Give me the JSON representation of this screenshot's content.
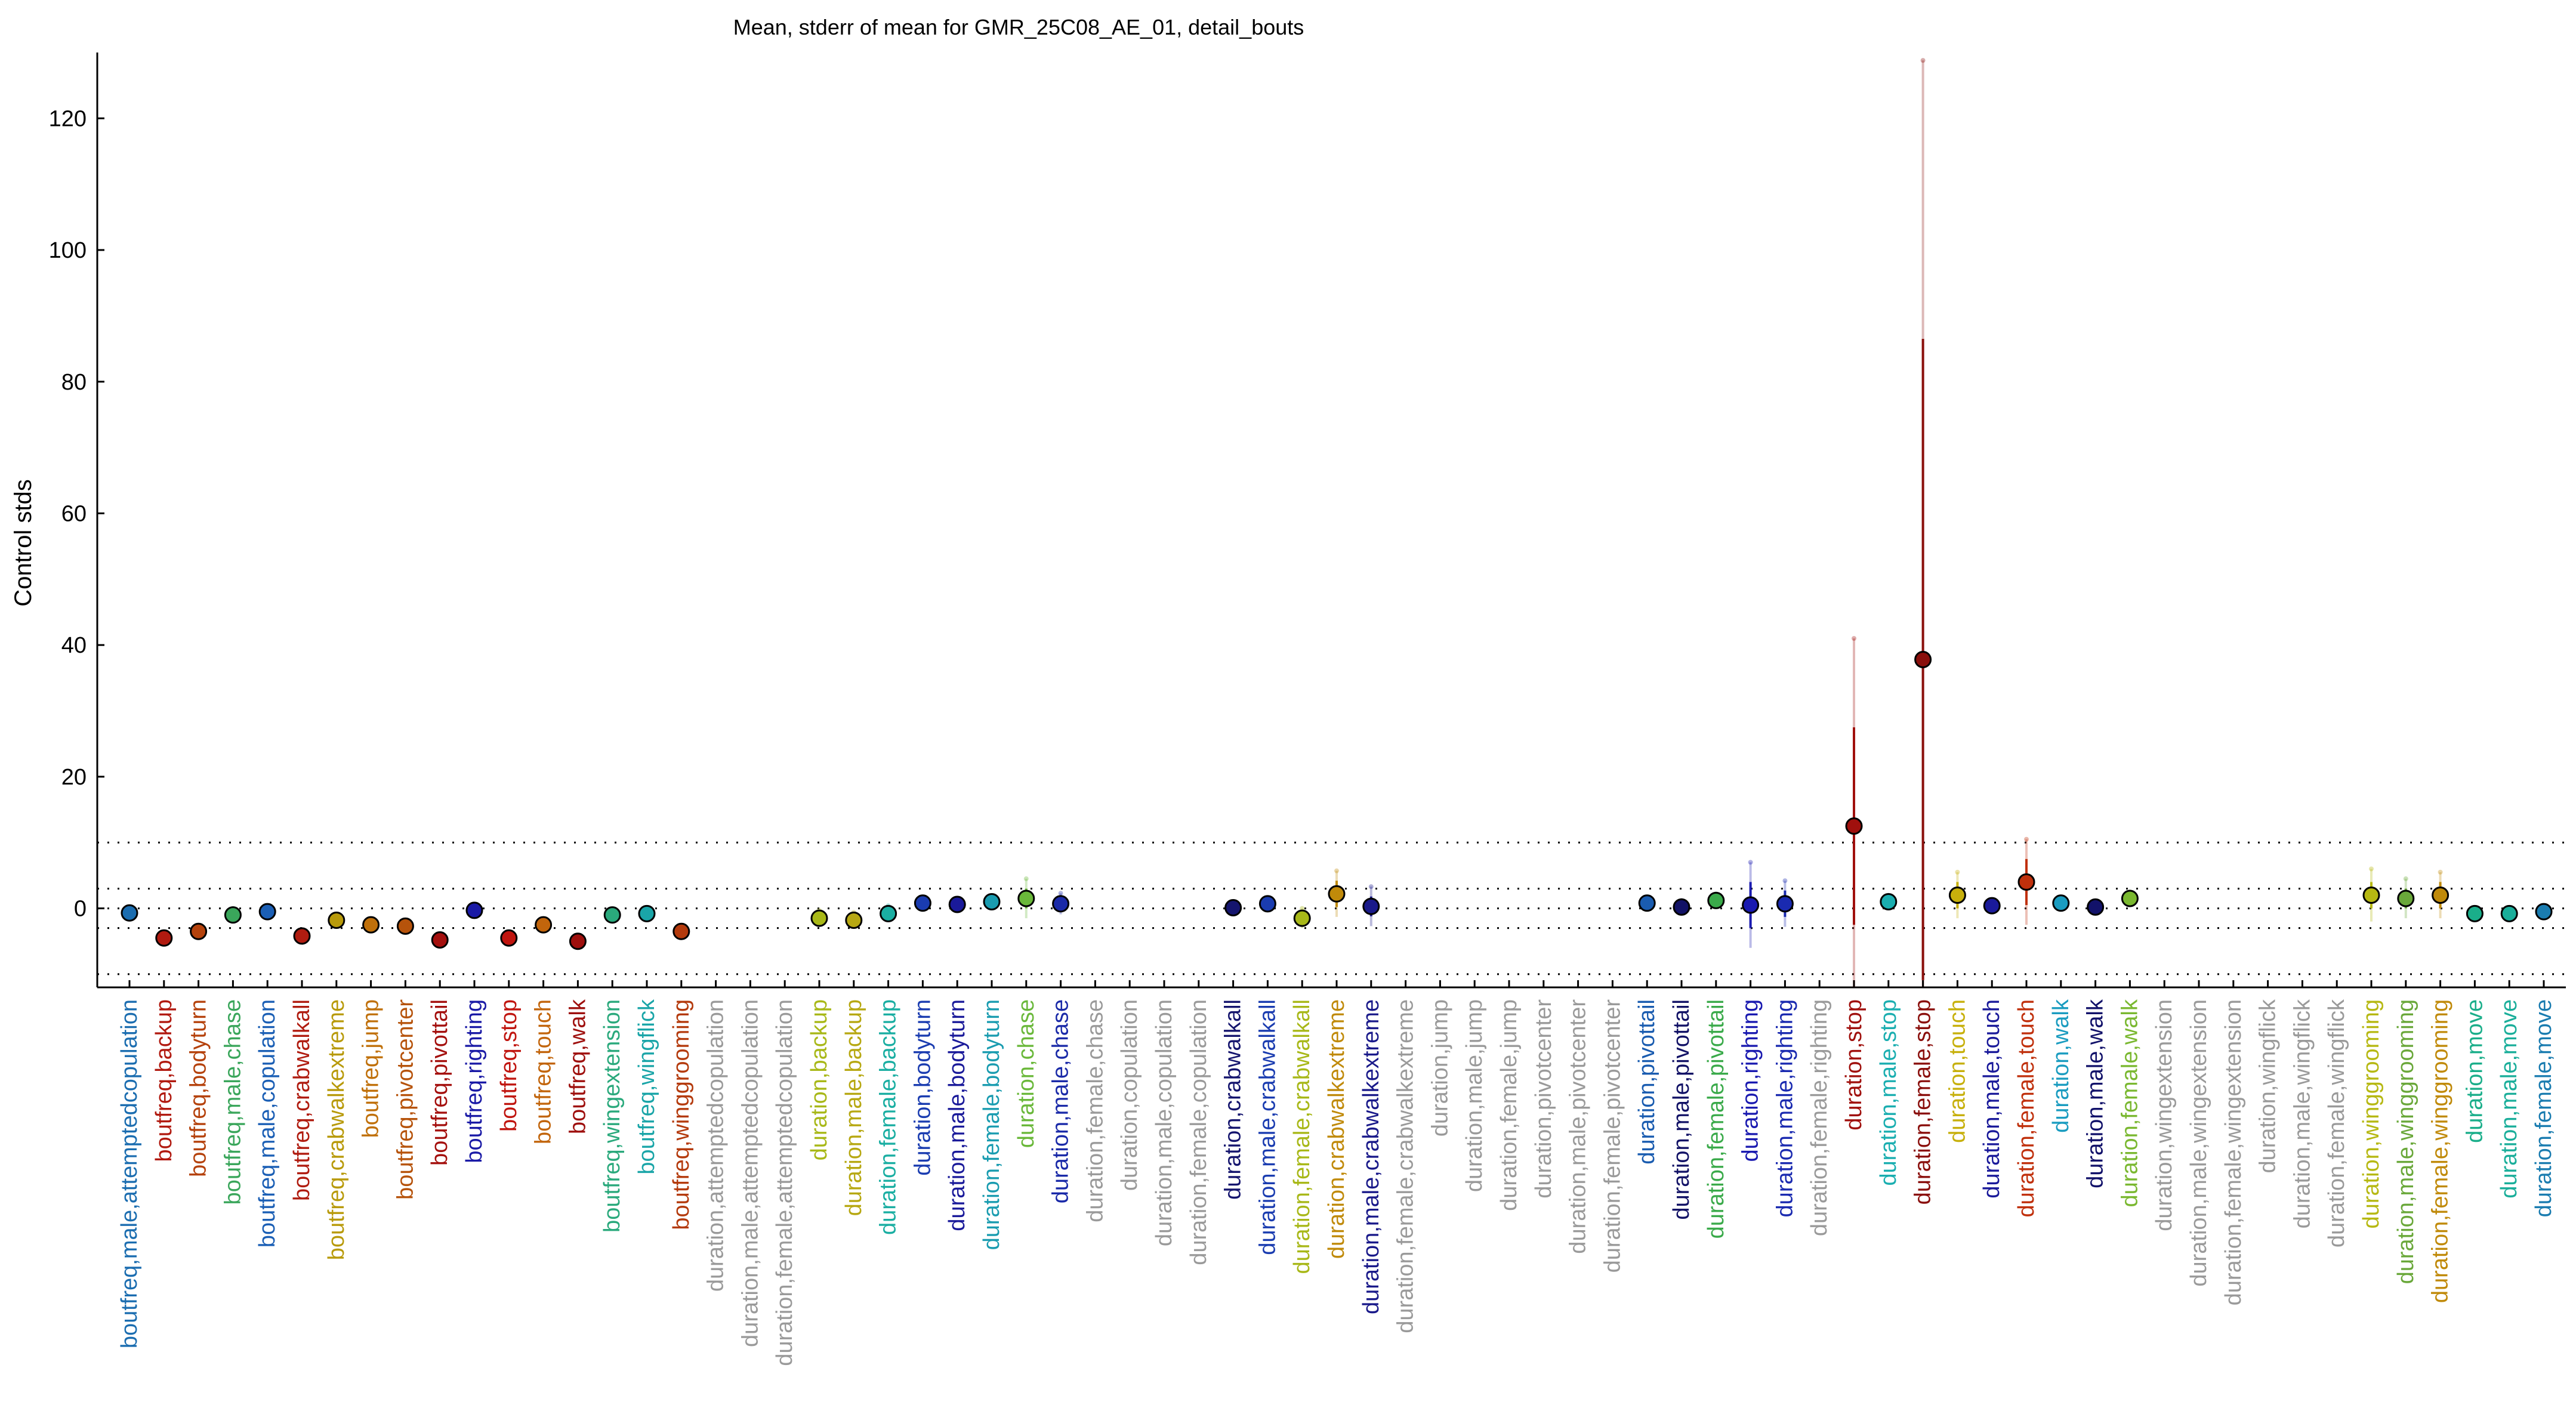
{
  "chart_data": {
    "type": "scatter",
    "title": "Mean, stderr of mean for GMR_25C08_AE_01, detail_bouts",
    "ylabel": "Control stds",
    "ylim": [
      -12,
      130
    ],
    "yticks": [
      0,
      20,
      40,
      60,
      80,
      100,
      120
    ],
    "reference_lines": [
      -10,
      -3,
      0,
      3,
      10
    ],
    "grid": false,
    "points": [
      {
        "label": "boutfreq,male,attemptedcopulation",
        "color": "#1b6db0",
        "y": -0.7,
        "se": 0.3,
        "se2": 0.5
      },
      {
        "label": "boutfreq,backup",
        "color": "#b11a10",
        "y": -4.5,
        "se": 0.4,
        "se2": 0.7
      },
      {
        "label": "boutfreq,bodyturn",
        "color": "#b5420c",
        "y": -3.5,
        "se": 0.4,
        "se2": 0.7
      },
      {
        "label": "boutfreq,male,chase",
        "color": "#3aa65b",
        "y": -1.0,
        "se": 0.5,
        "se2": 1.0
      },
      {
        "label": "boutfreq,male,copulation",
        "color": "#1b5fb5",
        "y": -0.5,
        "se": 0.3,
        "se2": 0.5
      },
      {
        "label": "boutfreq,crabwalkall",
        "color": "#b01c10",
        "y": -4.2,
        "se": 0.4,
        "se2": 0.7
      },
      {
        "label": "boutfreq,crabwalkextreme",
        "color": "#b89a0a",
        "y": -1.8,
        "se": 0.5,
        "se2": 0.9
      },
      {
        "label": "boutfreq,jump",
        "color": "#c0700a",
        "y": -2.5,
        "se": 0.4,
        "se2": 0.8
      },
      {
        "label": "boutfreq,pivotcenter",
        "color": "#b6530b",
        "y": -2.7,
        "se": 0.4,
        "se2": 0.8
      },
      {
        "label": "boutfreq,pivottail",
        "color": "#a4100e",
        "y": -4.8,
        "se": 0.4,
        "se2": 0.7
      },
      {
        "label": "boutfreq,righting",
        "color": "#1a1aa6",
        "y": -0.3,
        "se": 0.4,
        "se2": 0.7
      },
      {
        "label": "boutfreq,stop",
        "color": "#c0150f",
        "y": -4.5,
        "se": 0.4,
        "se2": 0.7
      },
      {
        "label": "boutfreq,touch",
        "color": "#c2650c",
        "y": -2.5,
        "se": 0.5,
        "se2": 0.8
      },
      {
        "label": "boutfreq,walk",
        "color": "#9e0f0d",
        "y": -5.0,
        "se": 0.4,
        "se2": 0.7
      },
      {
        "label": "boutfreq,wingextension",
        "color": "#2aa97c",
        "y": -1.0,
        "se": 0.5,
        "se2": 0.9
      },
      {
        "label": "boutfreq,wingflick",
        "color": "#1aa5a8",
        "y": -0.8,
        "se": 0.4,
        "se2": 0.7
      },
      {
        "label": "boutfreq,winggrooming",
        "color": "#b43a0c",
        "y": -3.5,
        "se": 0.4,
        "se2": 0.7
      },
      {
        "label": "duration,attemptedcopulation",
        "color": "#9a9a9a",
        "y": null
      },
      {
        "label": "duration,male,attemptedcopulation",
        "color": "#9a9a9a",
        "y": null
      },
      {
        "label": "duration,female,attemptedcopulation",
        "color": "#9a9a9a",
        "y": null
      },
      {
        "label": "duration,backup",
        "color": "#a8b818",
        "y": -1.5,
        "se": 0.6,
        "se2": 1.2
      },
      {
        "label": "duration,male,backup",
        "color": "#b7a812",
        "y": -1.8,
        "se": 0.6,
        "se2": 1.2
      },
      {
        "label": "duration,female,backup",
        "color": "#1aaea2",
        "y": -0.8,
        "se": 0.6,
        "se2": 1.2
      },
      {
        "label": "duration,bodyturn",
        "color": "#1a3cb0",
        "y": 0.8,
        "se": 0.3,
        "se2": 0.6
      },
      {
        "label": "duration,male,bodyturn",
        "color": "#1a1a9a",
        "y": 0.6,
        "se": 0.3,
        "se2": 0.6
      },
      {
        "label": "duration,female,bodyturn",
        "color": "#1a9cb0",
        "y": 1.0,
        "se": 0.5,
        "se2": 0.9
      },
      {
        "label": "duration,chase",
        "color": "#6ab83a",
        "y": 1.5,
        "se": 1.5,
        "se2": 3.0
      },
      {
        "label": "duration,male,chase",
        "color": "#1a2aa8",
        "y": 0.7,
        "se": 0.8,
        "se2": 1.6
      },
      {
        "label": "duration,female,chase",
        "color": "#9a9a9a",
        "y": null
      },
      {
        "label": "duration,copulation",
        "color": "#9a9a9a",
        "y": null
      },
      {
        "label": "duration,male,copulation",
        "color": "#9a9a9a",
        "y": null
      },
      {
        "label": "duration,female,copulation",
        "color": "#9a9a9a",
        "y": null
      },
      {
        "label": "duration,crabwalkall",
        "color": "#15156e",
        "y": 0.1,
        "se": 0.3,
        "se2": 0.6
      },
      {
        "label": "duration,male,crabwalkall",
        "color": "#1a3cb0",
        "y": 0.7,
        "se": 0.3,
        "se2": 0.6
      },
      {
        "label": "duration,female,crabwalkall",
        "color": "#a8b818",
        "y": -1.5,
        "se": 0.8,
        "se2": 1.5
      },
      {
        "label": "duration,crabwalkextreme",
        "color": "#c08a0a",
        "y": 2.2,
        "se": 2.0,
        "se2": 3.5
      },
      {
        "label": "duration,male,crabwalkextreme",
        "color": "#1a1a8a",
        "y": 0.3,
        "se": 1.5,
        "se2": 3.0
      },
      {
        "label": "duration,female,crabwalkextreme",
        "color": "#9a9a9a",
        "y": null
      },
      {
        "label": "duration,jump",
        "color": "#9a9a9a",
        "y": null
      },
      {
        "label": "duration,male,jump",
        "color": "#9a9a9a",
        "y": null
      },
      {
        "label": "duration,female,jump",
        "color": "#9a9a9a",
        "y": null
      },
      {
        "label": "duration,pivotcenter",
        "color": "#9a9a9a",
        "y": null
      },
      {
        "label": "duration,male,pivotcenter",
        "color": "#9a9a9a",
        "y": null
      },
      {
        "label": "duration,female,pivotcenter",
        "color": "#9a9a9a",
        "y": null
      },
      {
        "label": "duration,pivottail",
        "color": "#1a5cb0",
        "y": 0.8,
        "se": 0.3,
        "se2": 0.6
      },
      {
        "label": "duration,male,pivottail",
        "color": "#121266",
        "y": 0.2,
        "se": 0.5,
        "se2": 1.0
      },
      {
        "label": "duration,female,pivottail",
        "color": "#3aaa4a",
        "y": 1.2,
        "se": 0.5,
        "se2": 1.0
      },
      {
        "label": "duration,righting",
        "color": "#1a1ab0",
        "y": 0.5,
        "se": 3.5,
        "se2": 6.5
      },
      {
        "label": "duration,male,righting",
        "color": "#1a2ab0",
        "y": 0.7,
        "se": 2.0,
        "se2": 3.5
      },
      {
        "label": "duration,female,righting",
        "color": "#9a9a9a",
        "y": null
      },
      {
        "label": "duration,stop",
        "color": "#a0100d",
        "y": 12.5,
        "se": 15.0,
        "se2": 28.5
      },
      {
        "label": "duration,male,stop",
        "color": "#1aaeb0",
        "y": 1.0,
        "se": 0.5,
        "se2": 1.0
      },
      {
        "label": "duration,female,stop",
        "color": "#8a0f0c",
        "y": 37.8,
        "se": 48.7,
        "se2": 91.0
      },
      {
        "label": "duration,touch",
        "color": "#c7b00c",
        "y": 2.0,
        "se": 2.0,
        "se2": 3.5
      },
      {
        "label": "duration,male,touch",
        "color": "#1a1a9a",
        "y": 0.4,
        "se": 0.3,
        "se2": 0.6
      },
      {
        "label": "duration,female,touch",
        "color": "#c0300c",
        "y": 4.0,
        "se": 3.5,
        "se2": 6.5
      },
      {
        "label": "duration,walk",
        "color": "#1a9cc0",
        "y": 0.8,
        "se": 0.3,
        "se2": 0.6
      },
      {
        "label": "duration,male,walk",
        "color": "#12126a",
        "y": 0.2,
        "se": 0.3,
        "se2": 0.6
      },
      {
        "label": "duration,female,walk",
        "color": "#7ab830",
        "y": 1.5,
        "se": 0.5,
        "se2": 1.0
      },
      {
        "label": "duration,wingextension",
        "color": "#9a9a9a",
        "y": null
      },
      {
        "label": "duration,male,wingextension",
        "color": "#9a9a9a",
        "y": null
      },
      {
        "label": "duration,female,wingextension",
        "color": "#9a9a9a",
        "y": null
      },
      {
        "label": "duration,wingflick",
        "color": "#9a9a9a",
        "y": null
      },
      {
        "label": "duration,male,wingflick",
        "color": "#9a9a9a",
        "y": null
      },
      {
        "label": "duration,female,wingflick",
        "color": "#9a9a9a",
        "y": null
      },
      {
        "label": "duration,winggrooming",
        "color": "#b6b812",
        "y": 2.0,
        "se": 2.0,
        "se2": 4.0
      },
      {
        "label": "duration,male,winggrooming",
        "color": "#6aa83a",
        "y": 1.5,
        "se": 1.5,
        "se2": 3.0
      },
      {
        "label": "duration,female,winggrooming",
        "color": "#c08a0a",
        "y": 2.0,
        "se": 2.0,
        "se2": 3.5
      },
      {
        "label": "duration,move",
        "color": "#1aae8a",
        "y": -0.8,
        "se": 0.3,
        "se2": 0.6
      },
      {
        "label": "duration,male,move",
        "color": "#1aae9a",
        "y": -0.8,
        "se": 0.3,
        "se2": 0.6
      },
      {
        "label": "duration,female,move",
        "color": "#1a7cb0",
        "y": -0.5,
        "se": 0.3,
        "se2": 0.6
      }
    ]
  }
}
